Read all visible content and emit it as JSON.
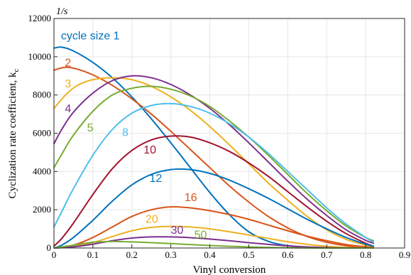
{
  "chart_data": {
    "type": "line",
    "title": "",
    "xlabel": "Vinyl conversion",
    "ylabel_main": "Cyclization rate coefficient, k",
    "ylabel_sub": "c",
    "y_unit": "1/s",
    "xlim": [
      0,
      0.9
    ],
    "ylim": [
      0,
      12000
    ],
    "xticks": [
      "0",
      "0.1",
      "0.2",
      "0.3",
      "0.4",
      "0.5",
      "0.6",
      "0.7",
      "0.8",
      "0.9"
    ],
    "yticks": [
      "0",
      "2000",
      "4000",
      "6000",
      "8000",
      "10000",
      "12000"
    ],
    "grid": true,
    "series": [
      {
        "name": "cycle size 1",
        "color": "#0072BD",
        "points": [
          [
            0,
            10450
          ],
          [
            0.02,
            10500
          ],
          [
            0.05,
            10300
          ],
          [
            0.1,
            9700
          ],
          [
            0.15,
            8900
          ],
          [
            0.2,
            7900
          ],
          [
            0.25,
            6750
          ],
          [
            0.3,
            5500
          ],
          [
            0.35,
            4200
          ],
          [
            0.4,
            2900
          ],
          [
            0.45,
            1750
          ],
          [
            0.5,
            850
          ],
          [
            0.55,
            350
          ],
          [
            0.6,
            120
          ],
          [
            0.65,
            40
          ],
          [
            0.7,
            10
          ],
          [
            0.75,
            0
          ],
          [
            0.8,
            0
          ],
          [
            0.82,
            0
          ]
        ]
      },
      {
        "name": "2",
        "color": "#D95319",
        "points": [
          [
            0,
            9300
          ],
          [
            0.03,
            9450
          ],
          [
            0.06,
            9350
          ],
          [
            0.1,
            9050
          ],
          [
            0.15,
            8500
          ],
          [
            0.2,
            7800
          ],
          [
            0.25,
            7000
          ],
          [
            0.3,
            6100
          ],
          [
            0.35,
            5150
          ],
          [
            0.4,
            4200
          ],
          [
            0.45,
            3250
          ],
          [
            0.5,
            2400
          ],
          [
            0.55,
            1650
          ],
          [
            0.6,
            1050
          ],
          [
            0.65,
            600
          ],
          [
            0.7,
            300
          ],
          [
            0.75,
            120
          ],
          [
            0.8,
            40
          ],
          [
            0.82,
            20
          ]
        ]
      },
      {
        "name": "3",
        "color": "#EDB120",
        "points": [
          [
            0,
            7300
          ],
          [
            0.03,
            8000
          ],
          [
            0.06,
            8500
          ],
          [
            0.1,
            8800
          ],
          [
            0.15,
            8900
          ],
          [
            0.2,
            8800
          ],
          [
            0.25,
            8450
          ],
          [
            0.3,
            7900
          ],
          [
            0.35,
            7200
          ],
          [
            0.4,
            6350
          ],
          [
            0.45,
            5400
          ],
          [
            0.5,
            4400
          ],
          [
            0.55,
            3400
          ],
          [
            0.6,
            2500
          ],
          [
            0.65,
            1650
          ],
          [
            0.7,
            950
          ],
          [
            0.75,
            450
          ],
          [
            0.8,
            150
          ],
          [
            0.82,
            80
          ]
        ]
      },
      {
        "name": "4",
        "color": "#7E2F8E",
        "points": [
          [
            0,
            5450
          ],
          [
            0.02,
            6200
          ],
          [
            0.05,
            7100
          ],
          [
            0.1,
            8100
          ],
          [
            0.15,
            8750
          ],
          [
            0.2,
            9000
          ],
          [
            0.25,
            8900
          ],
          [
            0.3,
            8550
          ],
          [
            0.35,
            8000
          ],
          [
            0.4,
            7300
          ],
          [
            0.45,
            6450
          ],
          [
            0.5,
            5500
          ],
          [
            0.55,
            4500
          ],
          [
            0.6,
            3500
          ],
          [
            0.65,
            2550
          ],
          [
            0.7,
            1700
          ],
          [
            0.75,
            950
          ],
          [
            0.8,
            400
          ],
          [
            0.82,
            250
          ]
        ]
      },
      {
        "name": "5",
        "color": "#77AC30",
        "points": [
          [
            0,
            4200
          ],
          [
            0.02,
            4900
          ],
          [
            0.05,
            5900
          ],
          [
            0.1,
            7150
          ],
          [
            0.15,
            8000
          ],
          [
            0.2,
            8350
          ],
          [
            0.25,
            8450
          ],
          [
            0.3,
            8300
          ],
          [
            0.35,
            7950
          ],
          [
            0.4,
            7400
          ],
          [
            0.45,
            6650
          ],
          [
            0.5,
            5800
          ],
          [
            0.55,
            4850
          ],
          [
            0.6,
            3850
          ],
          [
            0.65,
            2850
          ],
          [
            0.7,
            1950
          ],
          [
            0.75,
            1150
          ],
          [
            0.8,
            550
          ],
          [
            0.82,
            380
          ]
        ]
      },
      {
        "name": "8",
        "color": "#4DBEEE",
        "points": [
          [
            0,
            1100
          ],
          [
            0.02,
            1900
          ],
          [
            0.05,
            3100
          ],
          [
            0.1,
            4850
          ],
          [
            0.15,
            6200
          ],
          [
            0.2,
            7050
          ],
          [
            0.25,
            7450
          ],
          [
            0.3,
            7550
          ],
          [
            0.35,
            7400
          ],
          [
            0.4,
            7050
          ],
          [
            0.45,
            6500
          ],
          [
            0.5,
            5800
          ],
          [
            0.55,
            4950
          ],
          [
            0.6,
            4000
          ],
          [
            0.65,
            3050
          ],
          [
            0.7,
            2100
          ],
          [
            0.75,
            1250
          ],
          [
            0.8,
            550
          ],
          [
            0.82,
            300
          ]
        ]
      },
      {
        "name": "10",
        "color": "#A2142F",
        "points": [
          [
            0,
            100
          ],
          [
            0.02,
            500
          ],
          [
            0.05,
            1300
          ],
          [
            0.1,
            2800
          ],
          [
            0.15,
            4150
          ],
          [
            0.2,
            5100
          ],
          [
            0.25,
            5650
          ],
          [
            0.3,
            5850
          ],
          [
            0.35,
            5800
          ],
          [
            0.4,
            5500
          ],
          [
            0.45,
            5050
          ],
          [
            0.5,
            4450
          ],
          [
            0.55,
            3750
          ],
          [
            0.6,
            2950
          ],
          [
            0.65,
            2150
          ],
          [
            0.7,
            1400
          ],
          [
            0.75,
            750
          ],
          [
            0.8,
            250
          ],
          [
            0.82,
            100
          ]
        ]
      },
      {
        "name": "12",
        "color": "#0072BD",
        "points": [
          [
            0,
            0
          ],
          [
            0.02,
            150
          ],
          [
            0.05,
            550
          ],
          [
            0.1,
            1450
          ],
          [
            0.15,
            2450
          ],
          [
            0.2,
            3300
          ],
          [
            0.25,
            3850
          ],
          [
            0.3,
            4100
          ],
          [
            0.35,
            4100
          ],
          [
            0.4,
            3900
          ],
          [
            0.45,
            3550
          ],
          [
            0.5,
            3100
          ],
          [
            0.55,
            2600
          ],
          [
            0.6,
            2050
          ],
          [
            0.65,
            1500
          ],
          [
            0.7,
            1000
          ],
          [
            0.75,
            550
          ],
          [
            0.8,
            200
          ],
          [
            0.82,
            100
          ]
        ]
      },
      {
        "name": "16",
        "color": "#D95319",
        "points": [
          [
            0,
            0
          ],
          [
            0.05,
            150
          ],
          [
            0.1,
            550
          ],
          [
            0.15,
            1100
          ],
          [
            0.2,
            1650
          ],
          [
            0.25,
            2000
          ],
          [
            0.3,
            2150
          ],
          [
            0.35,
            2100
          ],
          [
            0.4,
            1950
          ],
          [
            0.45,
            1750
          ],
          [
            0.5,
            1500
          ],
          [
            0.55,
            1200
          ],
          [
            0.6,
            900
          ],
          [
            0.65,
            620
          ],
          [
            0.7,
            380
          ],
          [
            0.75,
            180
          ],
          [
            0.8,
            60
          ],
          [
            0.82,
            30
          ]
        ]
      },
      {
        "name": "20",
        "color": "#EDB120",
        "points": [
          [
            0,
            0
          ],
          [
            0.05,
            80
          ],
          [
            0.1,
            280
          ],
          [
            0.15,
            600
          ],
          [
            0.2,
            900
          ],
          [
            0.25,
            1080
          ],
          [
            0.3,
            1130
          ],
          [
            0.35,
            1100
          ],
          [
            0.4,
            1000
          ],
          [
            0.45,
            850
          ],
          [
            0.5,
            680
          ],
          [
            0.55,
            500
          ],
          [
            0.6,
            330
          ],
          [
            0.65,
            190
          ],
          [
            0.7,
            90
          ],
          [
            0.75,
            30
          ],
          [
            0.8,
            10
          ],
          [
            0.82,
            5
          ]
        ]
      },
      {
        "name": "30",
        "color": "#7E2F8E",
        "points": [
          [
            0,
            0
          ],
          [
            0.05,
            60
          ],
          [
            0.1,
            200
          ],
          [
            0.15,
            380
          ],
          [
            0.2,
            520
          ],
          [
            0.25,
            580
          ],
          [
            0.3,
            580
          ],
          [
            0.35,
            540
          ],
          [
            0.4,
            470
          ],
          [
            0.45,
            380
          ],
          [
            0.5,
            280
          ],
          [
            0.55,
            190
          ],
          [
            0.6,
            110
          ],
          [
            0.65,
            55
          ],
          [
            0.7,
            20
          ],
          [
            0.75,
            5
          ],
          [
            0.8,
            0
          ],
          [
            0.82,
            0
          ]
        ]
      },
      {
        "name": "50",
        "color": "#77AC30",
        "points": [
          [
            0,
            0
          ],
          [
            0.05,
            150
          ],
          [
            0.1,
            300
          ],
          [
            0.15,
            340
          ],
          [
            0.2,
            320
          ],
          [
            0.25,
            280
          ],
          [
            0.3,
            230
          ],
          [
            0.35,
            180
          ],
          [
            0.4,
            130
          ],
          [
            0.45,
            90
          ],
          [
            0.5,
            55
          ],
          [
            0.55,
            30
          ],
          [
            0.6,
            15
          ],
          [
            0.65,
            5
          ],
          [
            0.7,
            0
          ],
          [
            0.75,
            0
          ],
          [
            0.8,
            0
          ],
          [
            0.82,
            0
          ]
        ]
      }
    ]
  }
}
